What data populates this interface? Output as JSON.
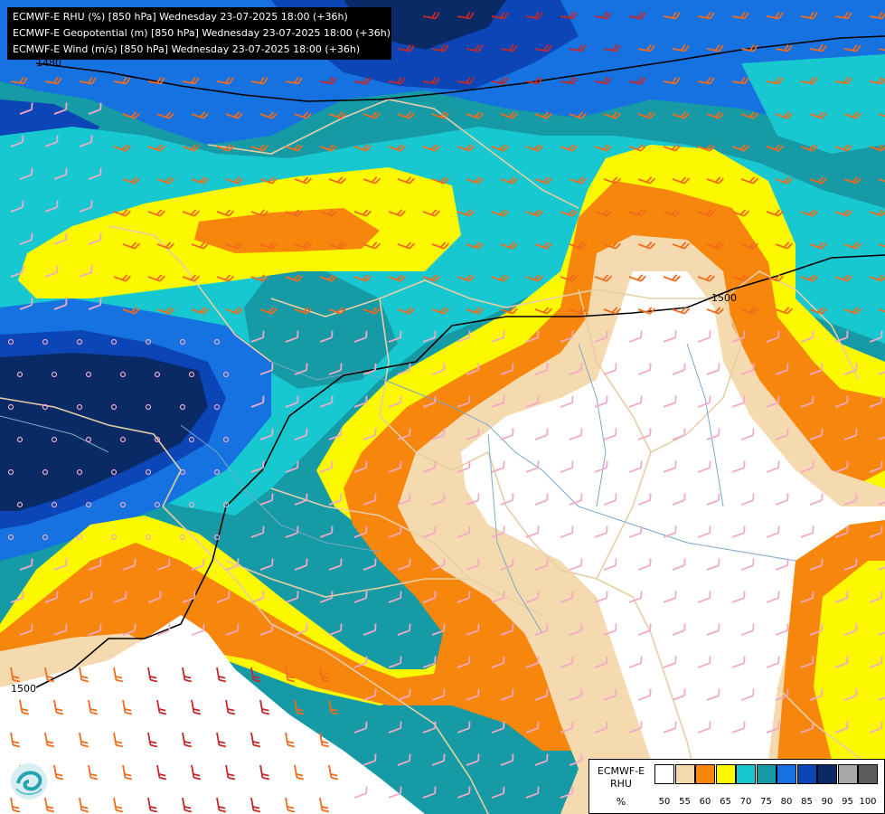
{
  "header": {
    "lines": [
      "ECMWF-E RHU (%) [850 hPa] Wednesday 23-07-2025 18:00 (+36h)",
      "ECMWF-E Geopotential (m) [850 hPa] Wednesday 23-07-2025 18:00 (+36h)",
      "ECMWF-E Wind (m/s) [850 hPa] Wednesday 23-07-2025 18:00 (+36h)"
    ]
  },
  "contours": {
    "label_1": "1500",
    "label_2": "1500",
    "label_3": "1480"
  },
  "legend": {
    "name": "ECMWF-E RHU",
    "unit": "%",
    "bins": [
      {
        "label": "50",
        "color": "#ffffff"
      },
      {
        "label": "55",
        "color": "#f5dab0"
      },
      {
        "label": "60",
        "color": "#f7860c"
      },
      {
        "label": "65",
        "color": "#fbf800"
      },
      {
        "label": "70",
        "color": "#17c8d0"
      },
      {
        "label": "75",
        "color": "#169aa6"
      },
      {
        "label": "80",
        "color": "#1572e0"
      },
      {
        "label": "85",
        "color": "#0c45b5"
      },
      {
        "label": "90",
        "color": "#0a2a66"
      },
      {
        "label": "95",
        "color": "#a9a9a9"
      },
      {
        "label": "100",
        "color": "#5c5c5c"
      }
    ]
  },
  "colors": {
    "white": "#ffffff",
    "tan": "#f5dab0",
    "orange": "#f7860c",
    "yellow": "#fbf800",
    "cyan": "#17c8d0",
    "teal": "#169aa6",
    "blue": "#1572e0",
    "darkblue": "#0c45b5",
    "navy": "#0a2a66",
    "border": "#e6cfa6",
    "river": "#7aa7c7",
    "barb_light": "#f2a9c8",
    "barb_orange": "#f26a1b",
    "barb_red": "#c62828"
  },
  "logo": {
    "icon": "weather-service-logo-icon"
  }
}
